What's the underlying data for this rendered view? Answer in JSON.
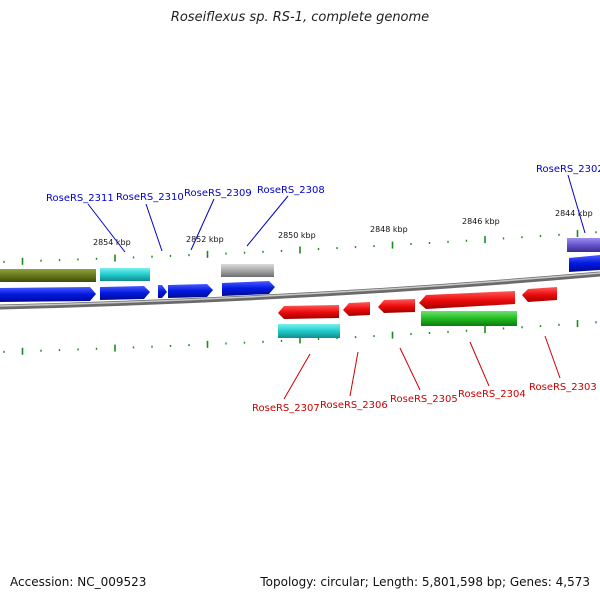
{
  "title": "Roseiflexus sp. RS-1, complete genome",
  "footer": {
    "accession": "Accession: NC_009523",
    "summary": "Topology: circular; Length: 5,801,598 bp; Genes: 4,573"
  },
  "colors": {
    "backbone": "#8a8a8a",
    "tick": "#1a8a1a",
    "forward_label": "#0000cc",
    "reverse_label": "#cc0000",
    "forward_cds": "#0018e0",
    "reverse_cds": "#ee0c0c",
    "trna": "#22cccc",
    "olive": "#667a1c",
    "gray_feature": "#a8a8a8",
    "green_feature": "#22bb22",
    "purple_feature": "#6655cc"
  },
  "scale_labels": [
    "2854 kbp",
    "2852 kbp",
    "2850 kbp",
    "2848 kbp",
    "2846 kbp",
    "2844 kbp"
  ],
  "forward_labels": [
    "RoseRS_2311",
    "RoseRS_2310",
    "RoseRS_2309",
    "RoseRS_2308",
    "RoseRS_2302"
  ],
  "reverse_labels": [
    "RoseRS_2307",
    "RoseRS_2306",
    "RoseRS_2305",
    "RoseRS_2304",
    "RoseRS_2303"
  ]
}
